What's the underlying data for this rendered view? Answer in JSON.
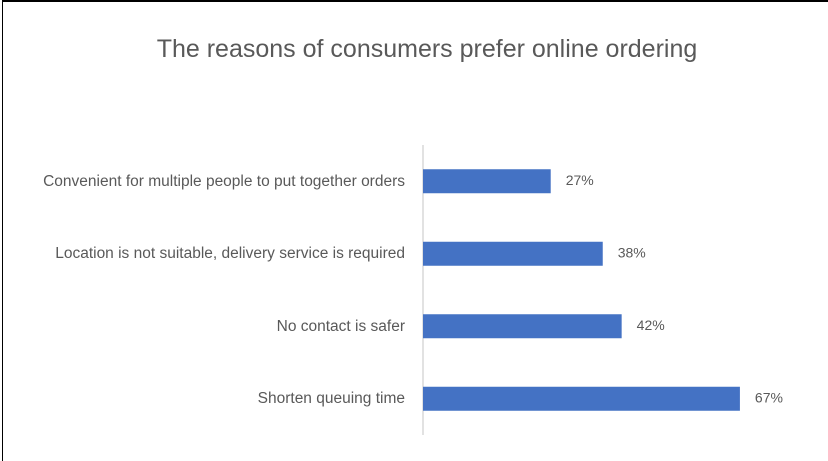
{
  "chart_data": {
    "type": "bar",
    "orientation": "horizontal",
    "title": "The reasons of consumers prefer online ordering",
    "categories": [
      "Convenient for multiple people to put together orders",
      "Location is not suitable, delivery service is required",
      "No contact is safer",
      "Shorten queuing time"
    ],
    "values": [
      27,
      38,
      42,
      67
    ],
    "value_labels": [
      "27%",
      "38%",
      "42%",
      "67%"
    ],
    "color": "#4472c4",
    "xlim": [
      0,
      100
    ]
  }
}
